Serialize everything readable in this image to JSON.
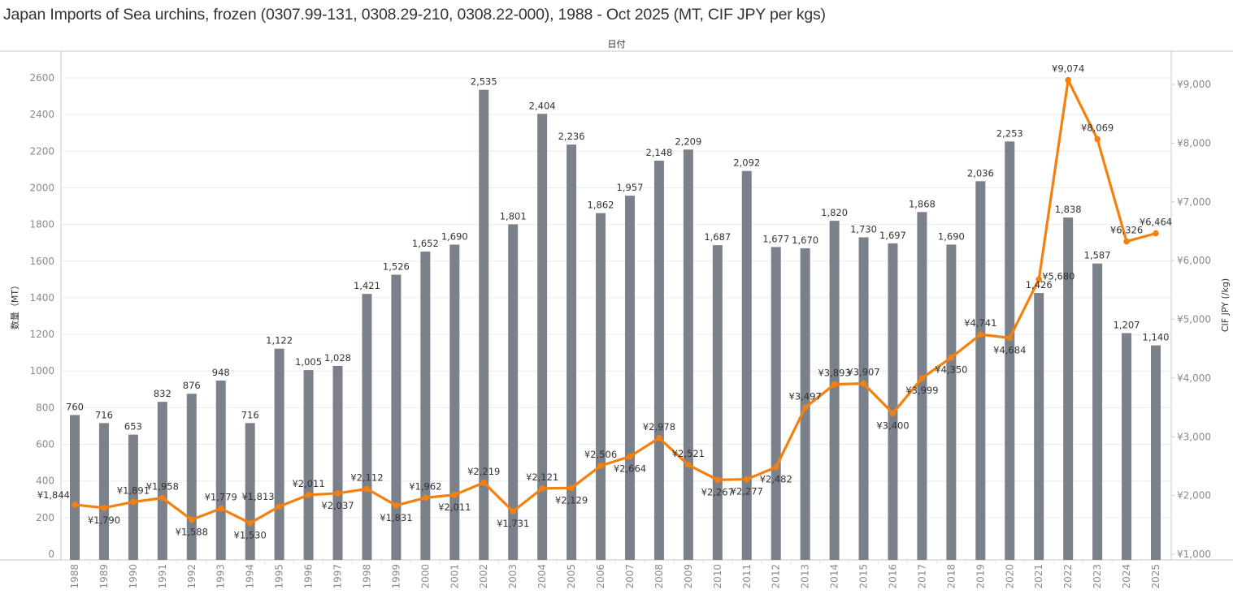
{
  "title": "Japan Imports of Sea urchins, frozen (0307.99-131, 0308.29-210, 0308.22-000), 1988 - Oct 2025 (MT, CIF JPY per kgs)",
  "chart_data": {
    "type": "bar+line",
    "title": "Japan Imports of Sea urchins, frozen (0307.99-131, 0308.29-210, 0308.22-000), 1988 - Oct 2025 (MT, CIF JPY per kgs)",
    "xlabel": "日付",
    "ylabel": "数量（MT）",
    "y2label": "CIF JPY (/kg)",
    "ylim": [
      0,
      2700
    ],
    "y2lim": [
      1000,
      9800
    ],
    "yticks": [
      0,
      200,
      400,
      600,
      800,
      1000,
      1200,
      1400,
      1600,
      1800,
      2000,
      2200,
      2400,
      2600
    ],
    "ytick_labels": [
      "0",
      "200",
      "400",
      "600",
      "800",
      "1000",
      "1200",
      "1400",
      "1600",
      "1800",
      "2000",
      "2200",
      "2400",
      "2600"
    ],
    "y2ticks": [
      1000,
      2000,
      3000,
      4000,
      5000,
      6000,
      7000,
      8000,
      9000
    ],
    "y2tick_labels": [
      "¥1,000",
      "¥2,000",
      "¥3,000",
      "¥4,000",
      "¥5,000",
      "¥6,000",
      "¥7,000",
      "¥8,000",
      "¥9,000"
    ],
    "grid": true,
    "colors": {
      "bar": "#7b818a",
      "line": "#f5800f"
    },
    "categories": [
      "1988",
      "1989",
      "1990",
      "1991",
      "1992",
      "1993",
      "1994",
      "1995",
      "1996",
      "1997",
      "1998",
      "1999",
      "2000",
      "2001",
      "2002",
      "2003",
      "2004",
      "2005",
      "2006",
      "2007",
      "2008",
      "2009",
      "2010",
      "2011",
      "2012",
      "2013",
      "2014",
      "2015",
      "2016",
      "2017",
      "2018",
      "2019",
      "2020",
      "2021",
      "2022",
      "2023",
      "2024",
      "2025"
    ],
    "series": [
      {
        "name": "数量（MT）",
        "type": "bar",
        "axis": "left",
        "values": [
          760,
          716,
          653,
          832,
          876,
          948,
          716,
          1122,
          1005,
          1028,
          1421,
          1526,
          1652,
          1690,
          2535,
          1801,
          2404,
          2236,
          1862,
          1957,
          2148,
          2209,
          1687,
          2092,
          1677,
          1670,
          1820,
          1730,
          1697,
          1868,
          1690,
          2036,
          2253,
          1426,
          1838,
          1587,
          1207,
          1140
        ],
        "labels": [
          "760",
          "716",
          "653",
          "832",
          "876",
          "948",
          "716",
          "1,122",
          "1,005",
          "1,028",
          "1,421",
          "1,526",
          "1,652",
          "1,690",
          "2,535",
          "1,801",
          "2,404",
          "2,236",
          "1,862",
          "1,957",
          "2,148",
          "2,209",
          "1,687",
          "2,092",
          "1,677",
          "1,670",
          "1,820",
          "1,730",
          "1,697",
          "1,868",
          "1,690",
          "2,036",
          "2,253",
          "1,426",
          "1,838",
          "1,587",
          "1,207",
          "1,140"
        ]
      },
      {
        "name": "CIF JPY (/kg)",
        "type": "line",
        "axis": "right",
        "values": [
          1844,
          1790,
          1891,
          1958,
          1588,
          1779,
          1530,
          1813,
          2011,
          2037,
          2112,
          1831,
          1962,
          2011,
          2219,
          1731,
          2121,
          2129,
          2506,
          2664,
          2978,
          2521,
          2267,
          2277,
          2482,
          3497,
          3893,
          3907,
          3400,
          3999,
          4350,
          4741,
          4684,
          5680,
          9074,
          8069,
          6326,
          6464
        ],
        "labels": [
          "¥1,844",
          "¥1,790",
          "¥1,891",
          "¥1,958",
          "¥1,588",
          "¥1,779",
          "¥1,530",
          "¥1,813",
          "¥2,011",
          "¥2,037",
          "¥2,112",
          "¥1,831",
          "¥1,962",
          "¥2,011",
          "¥2,219",
          "¥1,731",
          "¥2,121",
          "¥2,129",
          "¥2,506",
          "¥2,664",
          "¥2,978",
          "¥2,521",
          "¥2,267",
          "¥2,277",
          "¥2,482",
          "¥3,497",
          "¥3,893",
          "¥3,907",
          "¥3,400",
          "¥3,999",
          "¥4,350",
          "¥4,741",
          "¥4,684",
          "¥5,680",
          "¥9,074",
          "¥8,069",
          "¥6,326",
          "¥6,464"
        ],
        "label_side": [
          "left",
          "below",
          "above",
          "above",
          "below",
          "above",
          "below",
          "left",
          "above",
          "below",
          "above",
          "below",
          "above",
          "below",
          "above",
          "below",
          "above",
          "below",
          "above",
          "below",
          "above",
          "above",
          "below",
          "below",
          "below",
          "above",
          "above",
          "above",
          "below",
          "below",
          "below",
          "above",
          "below",
          "right",
          "above",
          "above",
          "above",
          "above"
        ]
      }
    ]
  }
}
